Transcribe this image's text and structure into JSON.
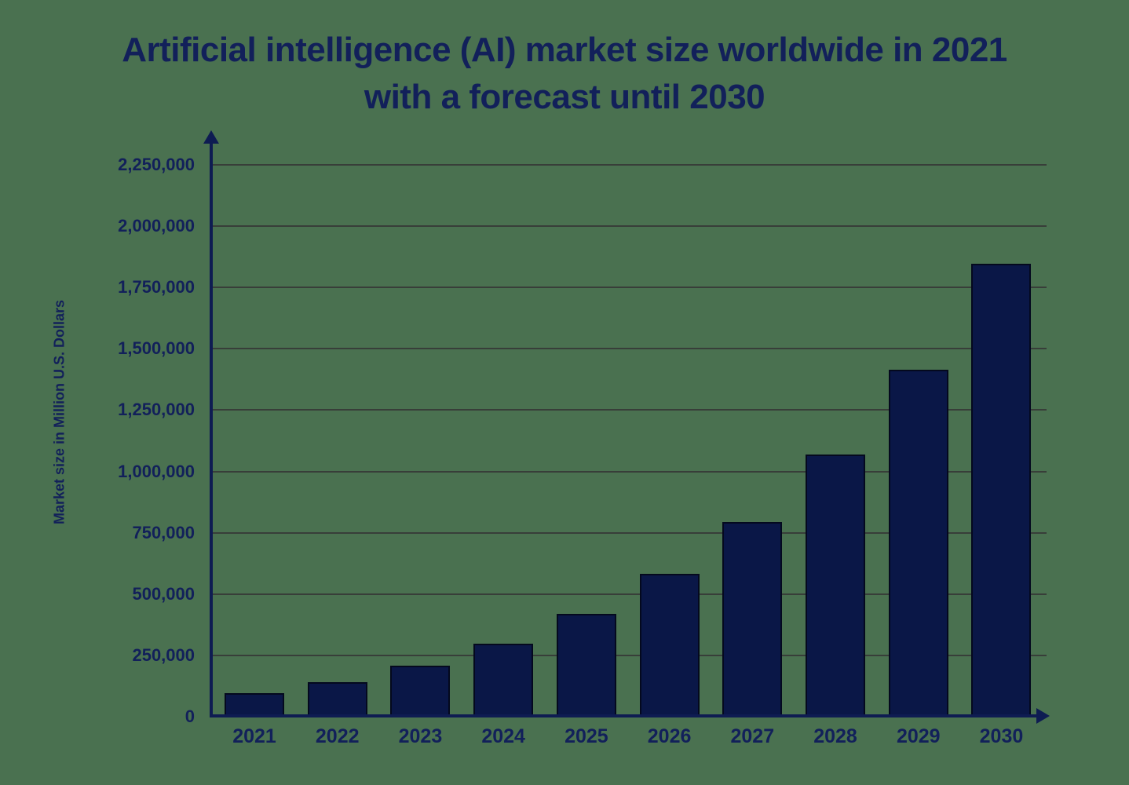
{
  "chart_data": {
    "type": "bar",
    "title": "Artificial intelligence (AI) market size worldwide in 2021 with a forecast until 2030",
    "title_lines": [
      "Artificial intelligence (AI) market size worldwide in 2021",
      "with a forecast until 2030"
    ],
    "categories": [
      "2021",
      "2022",
      "2023",
      "2024",
      "2025",
      "2026",
      "2027",
      "2028",
      "2029",
      "2030"
    ],
    "values": [
      95600,
      142320,
      207900,
      298250,
      420470,
      582950,
      795385,
      1068900,
      1415030,
      1847500
    ],
    "series_name": "AI market size",
    "xlabel": "",
    "ylabel": "Market size in Million U.S. Dollars",
    "ylim": [
      0,
      2250000
    ],
    "ytick_step": 250000,
    "ytick_labels": [
      "0",
      "250,000",
      "500,000",
      "750,000",
      "1,000,000",
      "1,250,000",
      "1,500,000",
      "1,750,000",
      "2,000,000",
      "2,250,000"
    ],
    "grid": "horizontal",
    "legend": "none",
    "colors": {
      "background": "#4a7150",
      "bar_fill": "#0a1747",
      "bar_border": "#04091e",
      "gridline": "#383e39",
      "axis": "#0e1c52",
      "text": "#12205a"
    }
  }
}
